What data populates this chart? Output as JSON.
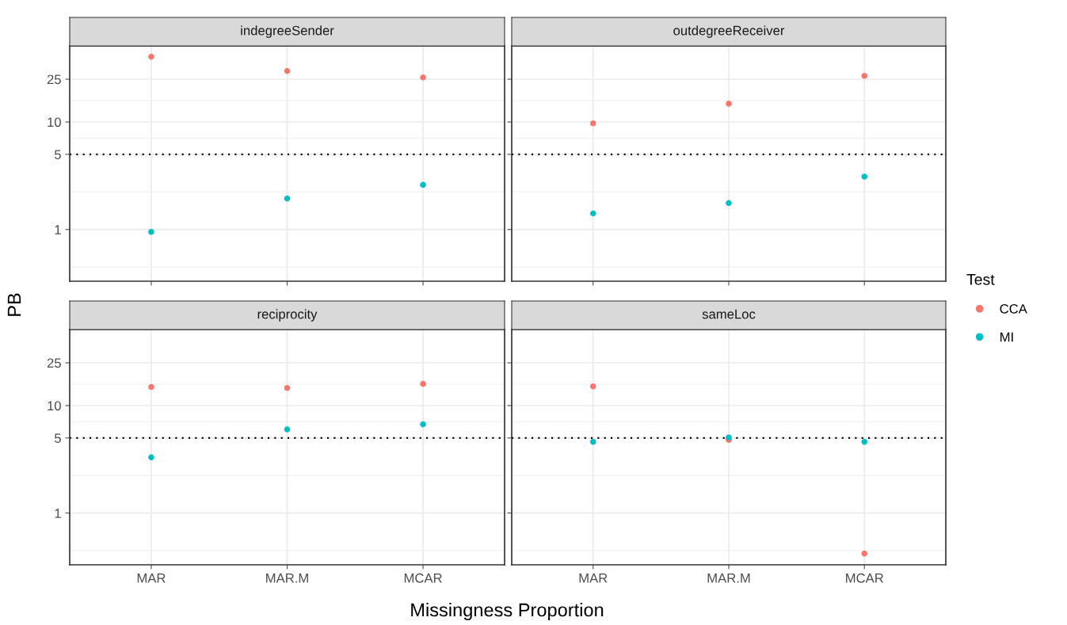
{
  "chart_data": [
    {
      "type": "scatter",
      "title": "indegreeSender",
      "ylabel": "PB",
      "categories": [
        "MAR",
        "MAR.M",
        "MCAR"
      ],
      "log": "y",
      "ylim": [
        0.33,
        51
      ],
      "yticks": [
        1,
        5,
        10,
        25
      ],
      "grid": true,
      "marker": "circle",
      "tick_labels": "y",
      "legend": "right",
      "legend_title": "Test",
      "ref_lines": [
        {
          "axis": "y",
          "value": 5,
          "line_style": "dotted",
          "color": "#000000"
        }
      ],
      "series": [
        {
          "name": "CCA",
          "color": "#f8766d",
          "values": [
            40.5,
            29.8,
            26.0
          ]
        },
        {
          "name": "MI",
          "color": "#00bfc4",
          "values": [
            0.95,
            1.94,
            2.6
          ]
        }
      ]
    },
    {
      "type": "scatter",
      "title": "outdegreeReceiver",
      "categories": [
        "MAR",
        "MAR.M",
        "MCAR"
      ],
      "log": "y",
      "ylim": [
        0.33,
        51
      ],
      "yticks": [
        1,
        5,
        10,
        25
      ],
      "grid": true,
      "marker": "circle",
      "tick_labels": false,
      "ref_lines": [
        {
          "axis": "y",
          "value": 5,
          "line_style": "dotted",
          "color": "#000000"
        }
      ],
      "series": [
        {
          "name": "CCA",
          "color": "#f8766d",
          "values": [
            9.7,
            14.8,
            26.9
          ]
        },
        {
          "name": "MI",
          "color": "#00bfc4",
          "values": [
            1.41,
            1.76,
            3.1
          ]
        }
      ]
    },
    {
      "type": "scatter",
      "title": "reciprocity",
      "xlabel": "Missingness Proportion",
      "categories": [
        "MAR",
        "MAR.M",
        "MCAR"
      ],
      "log": "y",
      "ylim": [
        0.33,
        51
      ],
      "yticks": [
        1,
        5,
        10,
        25
      ],
      "grid": true,
      "marker": "circle",
      "ref_lines": [
        {
          "axis": "y",
          "value": 5,
          "line_style": "dotted",
          "color": "#000000"
        }
      ],
      "series": [
        {
          "name": "CCA",
          "color": "#f8766d",
          "values": [
            14.9,
            14.6,
            15.9
          ]
        },
        {
          "name": "MI",
          "color": "#00bfc4",
          "values": [
            3.3,
            6.0,
            6.7
          ]
        }
      ]
    },
    {
      "type": "scatter",
      "title": "sameLoc",
      "categories": [
        "MAR",
        "MAR.M",
        "MCAR"
      ],
      "log": "y",
      "ylim": [
        0.33,
        51
      ],
      "yticks": [
        1,
        5,
        10,
        25
      ],
      "grid": true,
      "marker": "circle",
      "tick_labels": "x",
      "ref_lines": [
        {
          "axis": "y",
          "value": 5,
          "line_style": "dotted",
          "color": "#000000"
        }
      ],
      "series": [
        {
          "name": "CCA",
          "color": "#f8766d",
          "values": [
            15.1,
            4.8,
            0.42
          ]
        },
        {
          "name": "MI",
          "color": "#00bfc4",
          "values": [
            4.6,
            5.05,
            4.6
          ]
        }
      ]
    }
  ]
}
